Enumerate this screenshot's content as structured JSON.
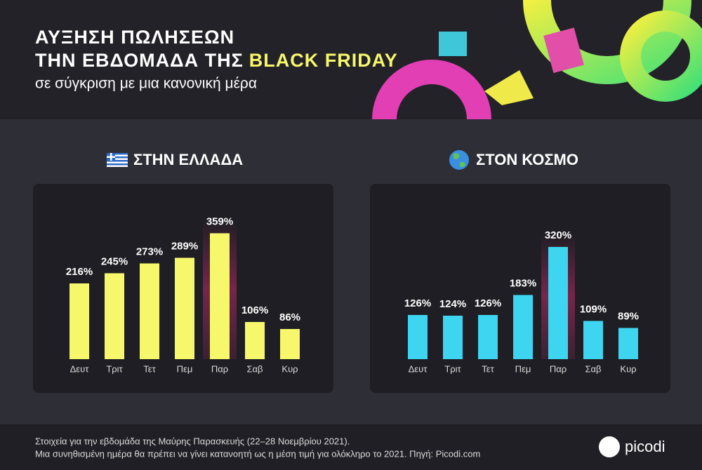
{
  "header": {
    "title_line1": "ΑΥΞΗΣΗ ΠΩΛΗΣΕΩΝ",
    "title_line2": "ΤΗΝ ΕΒΔΟΜΑΔΑ ΤΗΣ",
    "title_highlight": "BLACK FRIDAY",
    "subtitle": "σε σύγκριση με μια κανονική μέρα"
  },
  "chart_data": [
    {
      "type": "bar",
      "title": "ΣΤΗΝ ΕΛΛΑΔΑ",
      "categories": [
        "Δευτ",
        "Τριτ",
        "Τετ",
        "Πεμ",
        "Παρ",
        "Σαβ",
        "Κυρ"
      ],
      "values": [
        216,
        245,
        273,
        289,
        359,
        106,
        86
      ],
      "value_labels": [
        "216%",
        "245%",
        "273%",
        "289%",
        "359%",
        "106%",
        "86%"
      ],
      "color": "#f7f76b"
    },
    {
      "type": "bar",
      "title": "ΣΤΟΝ ΚΟΣΜΟ",
      "categories": [
        "Δευτ",
        "Τριτ",
        "Τετ",
        "Πεμ",
        "Παρ",
        "Σαβ",
        "Κυρ"
      ],
      "values": [
        126,
        124,
        126,
        183,
        320,
        109,
        89
      ],
      "value_labels": [
        "126%",
        "124%",
        "126%",
        "183%",
        "320%",
        "109%",
        "89%"
      ],
      "color": "#3dd5f0"
    }
  ],
  "footer": {
    "line1": "Στοιχεία για την εβδομάδα της Μαύρης Παρασκευής (22–28 Νοεμβρίου 2021).",
    "line2": "Μια συνηθισμένη ημέρα θα πρέπει να γίνει κατανοητή ως η μέση τιμή για ολόκληρο το 2021. Πηγή: Picodi.com",
    "brand": "picodi"
  }
}
